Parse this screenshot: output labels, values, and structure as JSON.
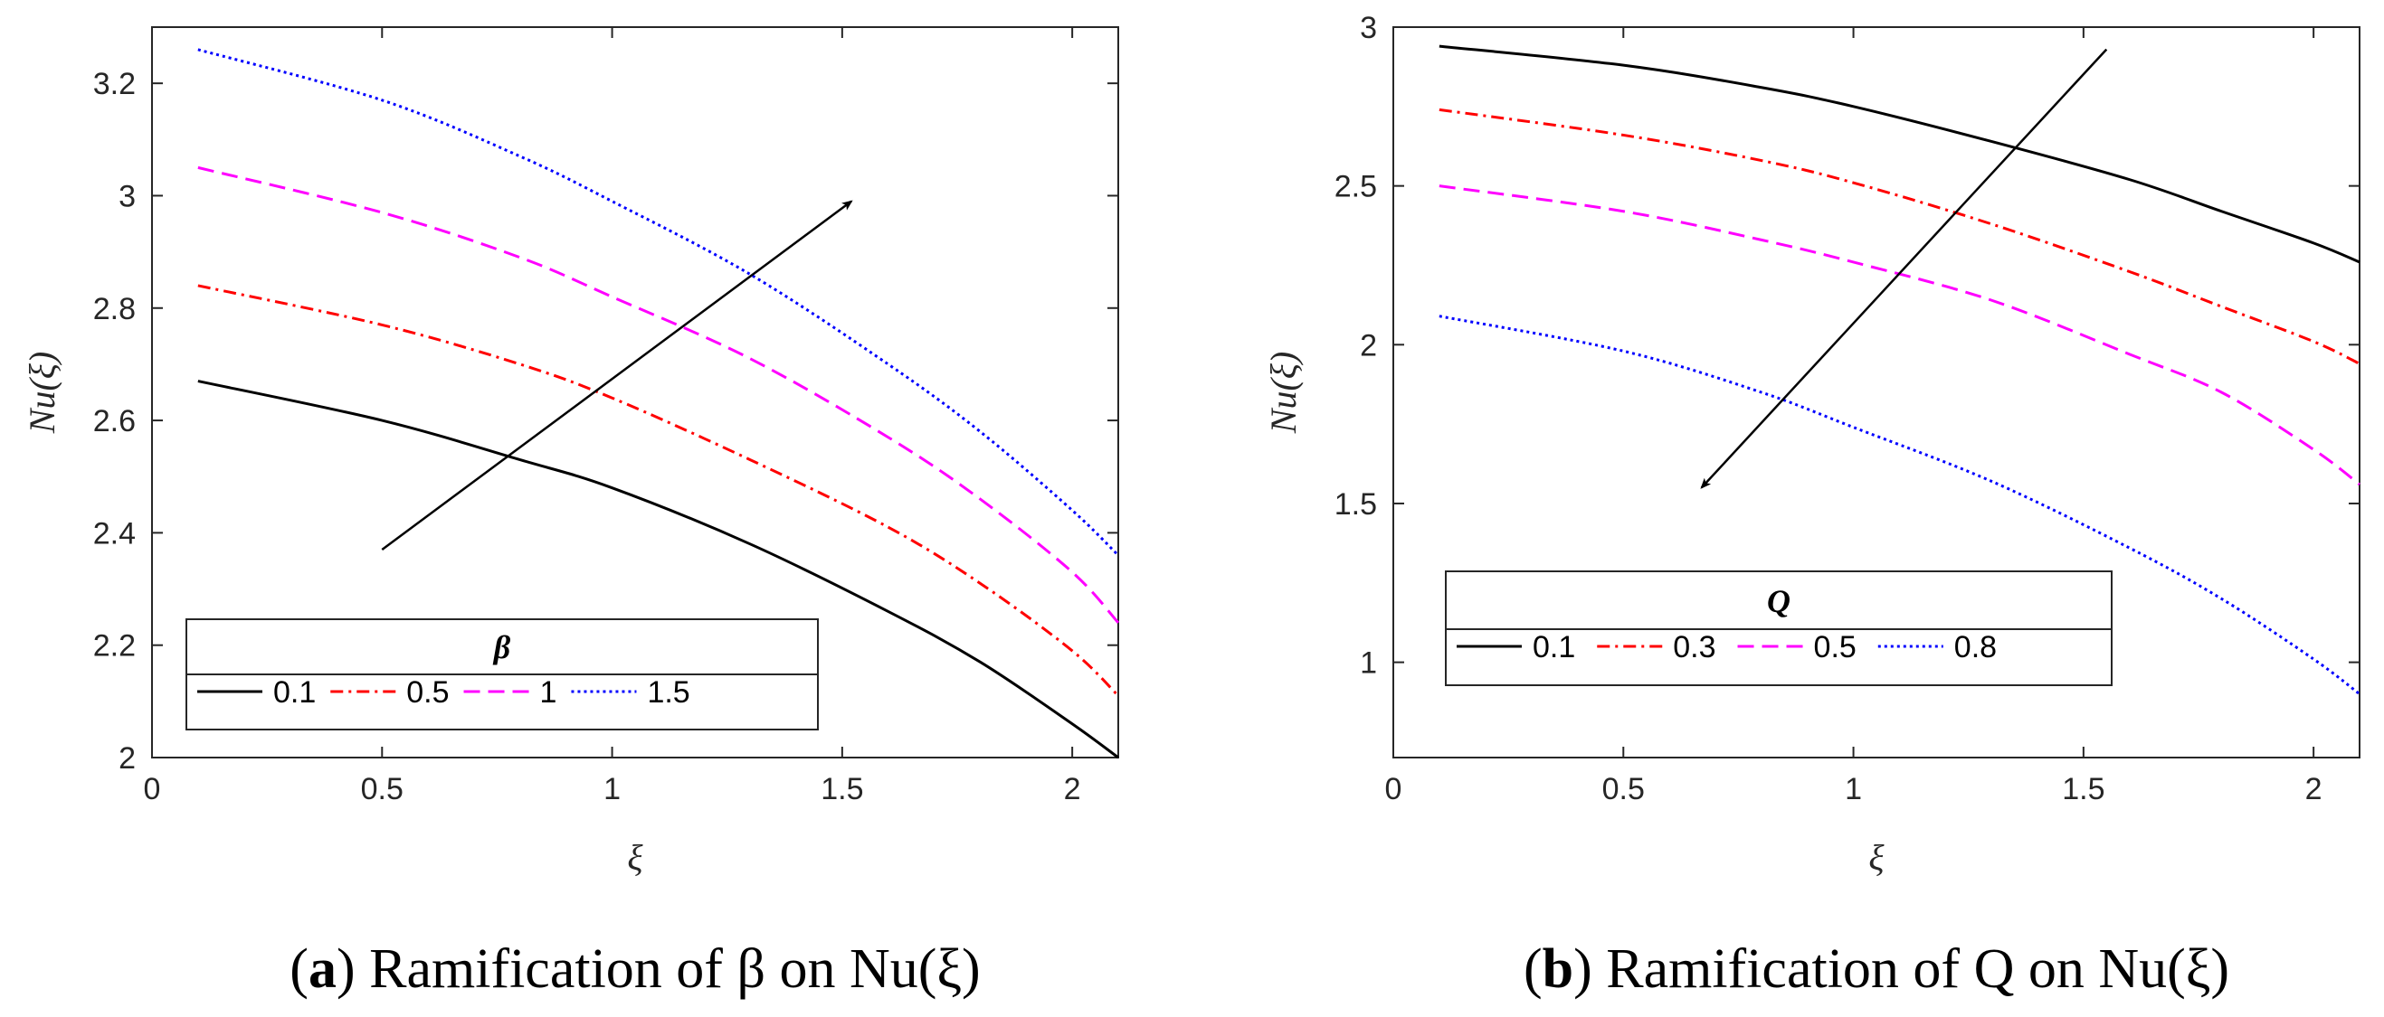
{
  "chart_data": [
    {
      "id": "a",
      "type": "line",
      "caption_prefix": "(",
      "caption_letter": "a",
      "caption_close": ")",
      "caption_text": "Ramification of β on Nu(ξ)",
      "xlabel": "ξ",
      "ylabel": "Nu(ξ)",
      "xlim": [
        0,
        2.1
      ],
      "ylim": [
        2,
        3.3
      ],
      "xticks": [
        0,
        0.5,
        1,
        1.5,
        2
      ],
      "xtick_labels": [
        "0",
        "0.5",
        "1",
        "1.5",
        "2"
      ],
      "yticks": [
        2,
        2.2,
        2.4,
        2.6,
        2.8,
        3,
        3.2
      ],
      "ytick_labels": [
        "2",
        "2.2",
        "2.4",
        "2.6",
        "2.8",
        "3",
        "3.2"
      ],
      "legend_title": "β",
      "legend_position": "bottom-left",
      "arrow": {
        "from": [
          0.5,
          2.37
        ],
        "to": [
          1.52,
          2.99
        ],
        "meaning": "increasing β"
      },
      "series": [
        {
          "name": "0.1",
          "color": "#000000",
          "dash": "solid",
          "x": [
            0.1,
            0.5,
            0.8,
            1.0,
            1.3,
            1.6,
            1.8,
            2.0,
            2.1
          ],
          "y": [
            2.67,
            2.6,
            2.53,
            2.48,
            2.38,
            2.26,
            2.17,
            2.06,
            2.0
          ]
        },
        {
          "name": "0.5",
          "color": "#ff0000",
          "dash": "dashdot",
          "x": [
            0.1,
            0.5,
            0.8,
            1.0,
            1.3,
            1.6,
            1.8,
            2.0,
            2.1
          ],
          "y": [
            2.84,
            2.77,
            2.7,
            2.64,
            2.53,
            2.41,
            2.31,
            2.19,
            2.11
          ]
        },
        {
          "name": "1",
          "color": "#ff00ff",
          "dash": "dashed",
          "x": [
            0.1,
            0.5,
            0.8,
            1.0,
            1.3,
            1.6,
            1.8,
            2.0,
            2.1
          ],
          "y": [
            3.05,
            2.97,
            2.89,
            2.82,
            2.71,
            2.57,
            2.46,
            2.33,
            2.24
          ]
        },
        {
          "name": "1.5",
          "color": "#0000ff",
          "dash": "dotted",
          "x": [
            0.1,
            0.5,
            0.8,
            1.0,
            1.3,
            1.6,
            1.8,
            2.0,
            2.1
          ],
          "y": [
            3.26,
            3.17,
            3.07,
            2.99,
            2.86,
            2.7,
            2.58,
            2.44,
            2.36
          ]
        }
      ]
    },
    {
      "id": "b",
      "type": "line",
      "caption_prefix": "(",
      "caption_letter": "b",
      "caption_close": ")",
      "caption_text": "Ramification of Q on Nu(ξ)",
      "xlabel": "ξ",
      "ylabel": "Nu(ξ)",
      "xlim": [
        0,
        2.1
      ],
      "ylim": [
        0.7,
        3
      ],
      "xticks": [
        0,
        0.5,
        1,
        1.5,
        2
      ],
      "xtick_labels": [
        "0",
        "0.5",
        "1",
        "1.5",
        "2"
      ],
      "yticks": [
        1,
        1.5,
        2,
        2.5,
        3
      ],
      "ytick_labels": [
        "1",
        "1.5",
        "2",
        "2.5",
        "3"
      ],
      "legend_title": "Q",
      "legend_position": "bottom-left",
      "arrow": {
        "from": [
          1.55,
          2.93
        ],
        "to": [
          0.67,
          1.55
        ],
        "meaning": "increasing Q"
      },
      "series": [
        {
          "name": "0.1",
          "color": "#000000",
          "dash": "solid",
          "x": [
            0.1,
            0.5,
            0.8,
            1.0,
            1.3,
            1.6,
            1.8,
            2.0,
            2.1
          ],
          "y": [
            2.94,
            2.88,
            2.81,
            2.75,
            2.64,
            2.52,
            2.42,
            2.32,
            2.26
          ]
        },
        {
          "name": "0.3",
          "color": "#ff0000",
          "dash": "dashdot",
          "x": [
            0.1,
            0.5,
            0.8,
            1.0,
            1.3,
            1.6,
            1.8,
            2.0,
            2.1
          ],
          "y": [
            2.74,
            2.66,
            2.58,
            2.51,
            2.38,
            2.23,
            2.12,
            2.01,
            1.94
          ]
        },
        {
          "name": "0.5",
          "color": "#ff00ff",
          "dash": "dashed",
          "x": [
            0.1,
            0.5,
            0.8,
            1.0,
            1.3,
            1.6,
            1.8,
            2.0,
            2.1
          ],
          "y": [
            2.5,
            2.42,
            2.33,
            2.26,
            2.14,
            1.97,
            1.85,
            1.67,
            1.56
          ]
        },
        {
          "name": "0.8",
          "color": "#0000ff",
          "dash": "dotted",
          "x": [
            0.1,
            0.5,
            0.8,
            1.0,
            1.3,
            1.6,
            1.8,
            2.0,
            2.1
          ],
          "y": [
            2.09,
            1.98,
            1.85,
            1.74,
            1.57,
            1.36,
            1.2,
            1.01,
            0.9
          ]
        }
      ]
    }
  ]
}
